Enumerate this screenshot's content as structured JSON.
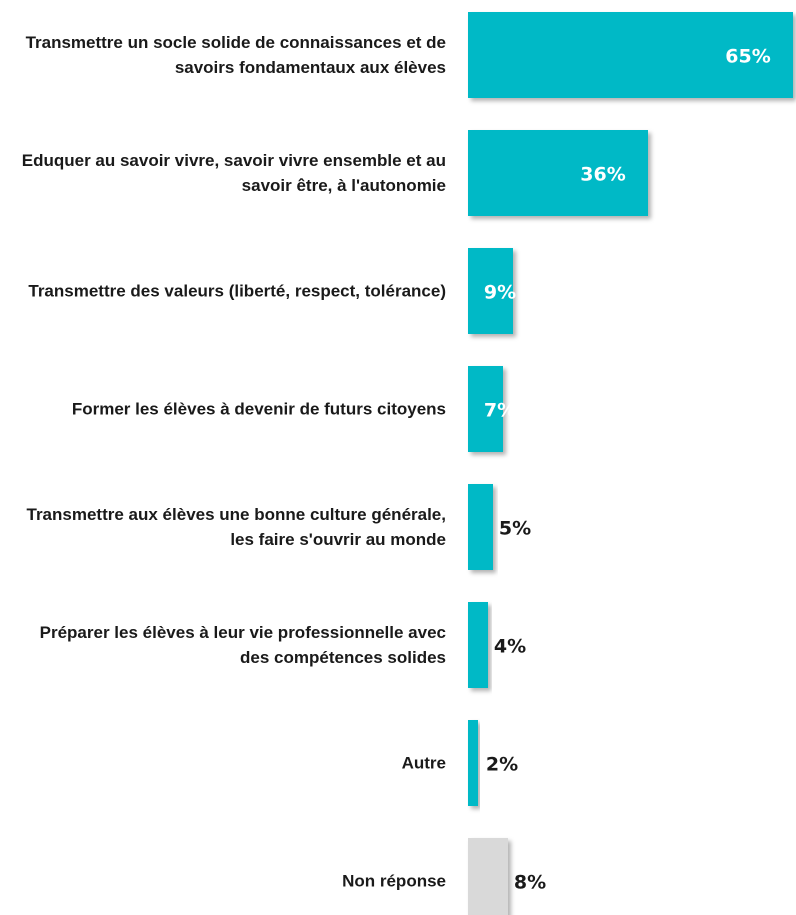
{
  "chart_data": {
    "type": "barh",
    "categories": [
      "Transmettre un socle solide de connaissances et de savoirs fondamentaux aux élèves",
      "Eduquer au savoir vivre, savoir vivre ensemble et au savoir être, à l'autonomie",
      "Transmettre des valeurs (liberté, respect, tolérance)",
      "Former les élèves à devenir de futurs citoyens",
      "Transmettre aux élèves une bonne culture générale, les faire s'ouvrir au monde",
      "Préparer les élèves à leur vie professionnelle avec des compétences solides",
      "Autre",
      "Non réponse"
    ],
    "values": [
      65,
      36,
      9,
      7,
      5,
      4,
      2,
      8
    ],
    "value_labels": [
      "65%",
      "36%",
      "9%",
      "7%",
      "5%",
      "4%",
      "2%",
      "8%"
    ],
    "colors": [
      "#00b9c6",
      "#00b9c6",
      "#00b9c6",
      "#00b9c6",
      "#00b9c6",
      "#00b9c6",
      "#00b9c6",
      "#d9d9d9"
    ],
    "value_label_colors": [
      "#ffffff",
      "#ffffff",
      "#ffffff",
      "#ffffff",
      "#1a1a1a",
      "#1a1a1a",
      "#1a1a1a",
      "#1a1a1a"
    ]
  }
}
